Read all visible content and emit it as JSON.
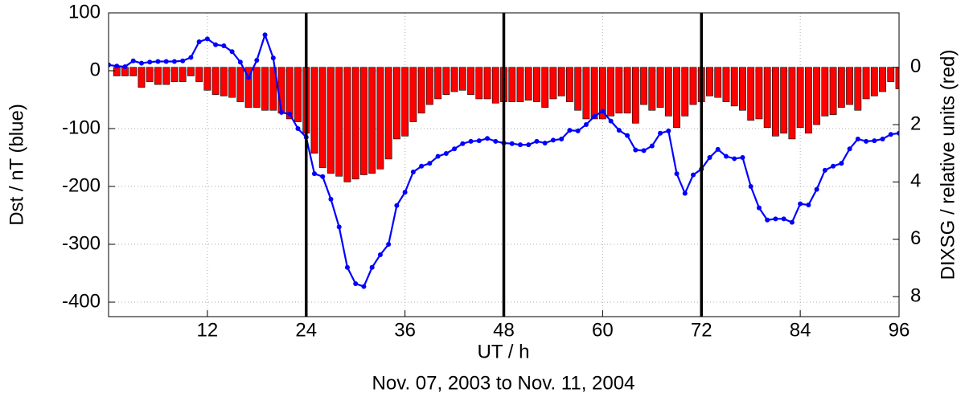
{
  "chart_data": {
    "type": "combo",
    "xlabel": "UT / h",
    "subtitle": "Nov. 07, 2003 to Nov. 11, 2004",
    "ylabel": "Dst / nT (blue)",
    "y2label": "DIXSG / relative units (red)",
    "xlim": [
      0,
      96
    ],
    "xticks": [
      12,
      24,
      36,
      48,
      60,
      72,
      84,
      96
    ],
    "ylim": [
      -425,
      100
    ],
    "yticks": [
      -400,
      -300,
      -200,
      -100,
      0,
      100
    ],
    "y2lim": [
      -1.9,
      8.7
    ],
    "y2ticks": [
      0,
      2,
      4,
      6,
      8
    ],
    "y2_inverted": true,
    "y2_color": "#e8141a",
    "grid": true,
    "vlines": [
      24,
      48,
      72
    ],
    "series": [
      {
        "name": "DIXSG",
        "type": "bar",
        "axis": "y2",
        "color": "#ff0000",
        "x": [
          1,
          2,
          3,
          4,
          5,
          6,
          7,
          8,
          9,
          10,
          11,
          12,
          13,
          14,
          15,
          16,
          17,
          18,
          19,
          20,
          21,
          22,
          23,
          24,
          25,
          26,
          27,
          28,
          29,
          30,
          31,
          32,
          33,
          34,
          35,
          36,
          37,
          38,
          39,
          40,
          41,
          42,
          43,
          44,
          45,
          46,
          47,
          48,
          49,
          50,
          51,
          52,
          53,
          54,
          55,
          56,
          57,
          58,
          59,
          60,
          61,
          62,
          63,
          64,
          65,
          66,
          67,
          68,
          69,
          70,
          71,
          72,
          73,
          74,
          75,
          76,
          77,
          78,
          79,
          80,
          81,
          82,
          83,
          84,
          85,
          86,
          87,
          88,
          89,
          90,
          91,
          92,
          93,
          94,
          95,
          96
        ],
        "values": [
          0.3,
          0.3,
          0.3,
          0.7,
          0.5,
          0.6,
          0.6,
          0.5,
          0.5,
          0.3,
          0.5,
          0.8,
          0.95,
          1.0,
          1.05,
          1.2,
          1.4,
          1.4,
          1.5,
          1.5,
          1.6,
          1.8,
          1.9,
          2.3,
          3.0,
          3.5,
          3.7,
          3.8,
          4.0,
          3.9,
          3.75,
          3.7,
          3.55,
          3.2,
          2.5,
          2.4,
          1.9,
          1.6,
          1.3,
          1.1,
          0.95,
          0.85,
          0.8,
          0.95,
          1.1,
          1.1,
          1.25,
          1.2,
          1.2,
          1.2,
          1.15,
          1.2,
          1.4,
          1.1,
          1.0,
          1.2,
          1.5,
          1.8,
          1.8,
          1.8,
          1.7,
          1.6,
          1.6,
          1.95,
          1.3,
          1.5,
          1.4,
          1.7,
          2.1,
          1.7,
          1.3,
          1.2,
          1.0,
          1.05,
          1.2,
          1.35,
          1.5,
          1.85,
          1.8,
          2.1,
          2.4,
          2.3,
          2.5,
          2.1,
          2.3,
          2.0,
          1.7,
          1.65,
          1.4,
          1.3,
          1.5,
          1.1,
          1.0,
          0.85,
          0.5,
          0.75
        ]
      },
      {
        "name": "Dst",
        "type": "line",
        "axis": "y",
        "color": "#0000ff",
        "x": [
          0,
          1,
          2,
          3,
          4,
          5,
          6,
          7,
          8,
          9,
          10,
          11,
          12,
          13,
          14,
          15,
          16,
          17,
          18,
          19,
          20,
          21,
          22,
          23,
          24,
          25,
          26,
          27,
          28,
          29,
          30,
          31,
          32,
          33,
          34,
          35,
          36,
          37,
          38,
          39,
          40,
          41,
          42,
          43,
          44,
          45,
          46,
          47,
          48,
          49,
          50,
          51,
          52,
          53,
          54,
          55,
          56,
          57,
          58,
          59,
          60,
          61,
          62,
          63,
          64,
          65,
          66,
          67,
          68,
          69,
          70,
          71,
          72,
          73,
          74,
          75,
          76,
          77,
          78,
          79,
          80,
          81,
          82,
          83,
          84,
          85,
          86,
          87,
          88,
          89,
          90,
          91,
          92,
          93,
          94,
          95,
          96
        ],
        "values": [
          10,
          8,
          7,
          17,
          13,
          15,
          16,
          16,
          16,
          17,
          23,
          50,
          55,
          45,
          43,
          33,
          15,
          -12,
          18,
          62,
          22,
          -72,
          -75,
          -100,
          -115,
          -178,
          -183,
          -222,
          -270,
          -340,
          -368,
          -373,
          -340,
          -318,
          -300,
          -233,
          -210,
          -175,
          -165,
          -160,
          -148,
          -143,
          -135,
          -126,
          -122,
          -121,
          -117,
          -122,
          -125,
          -126,
          -128,
          -128,
          -122,
          -125,
          -120,
          -118,
          -103,
          -104,
          -93,
          -79,
          -70,
          -87,
          -103,
          -112,
          -137,
          -138,
          -130,
          -108,
          -104,
          -178,
          -212,
          -180,
          -170,
          -150,
          -136,
          -148,
          -152,
          -150,
          -200,
          -237,
          -258,
          -256,
          -256,
          -262,
          -230,
          -232,
          -205,
          -172,
          -165,
          -160,
          -135,
          -118,
          -122,
          -121,
          -118,
          -110,
          -108
        ]
      }
    ]
  }
}
